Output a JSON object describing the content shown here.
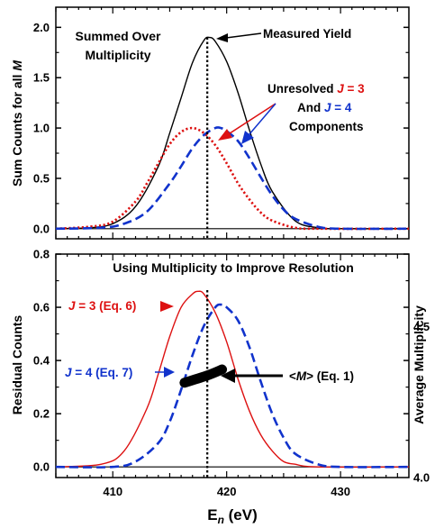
{
  "chart_data": [
    {
      "type": "line",
      "panel": "top",
      "title": "Summed Over Multiplicity",
      "ylabel": "Sum Counts for all M",
      "xlim": [
        405,
        436
      ],
      "ylim": [
        -0.1,
        2.2
      ],
      "yticks": [
        "0.0",
        "0.5",
        "1.0",
        "1.5",
        "2.0"
      ],
      "series": [
        {
          "name": "Measured Yield",
          "color": "#000000",
          "style": "solid",
          "x": [
            405,
            408,
            410,
            412,
            414,
            415,
            416,
            417,
            418,
            418.5,
            419,
            420,
            421,
            422,
            423,
            424,
            426,
            428,
            430,
            436
          ],
          "y": [
            0,
            0.01,
            0.05,
            0.22,
            0.62,
            0.95,
            1.3,
            1.65,
            1.87,
            1.9,
            1.86,
            1.66,
            1.35,
            0.98,
            0.64,
            0.37,
            0.08,
            0.01,
            0,
            0
          ]
        },
        {
          "name": "J = 3",
          "color": "#dd1111",
          "style": "dotted",
          "x": [
            405,
            408,
            410,
            412,
            413,
            414,
            415,
            416,
            417,
            418,
            419,
            420,
            421,
            422,
            423,
            424,
            426,
            428,
            436
          ],
          "y": [
            0,
            0.02,
            0.07,
            0.27,
            0.45,
            0.65,
            0.84,
            0.96,
            1.0,
            0.95,
            0.83,
            0.65,
            0.45,
            0.29,
            0.16,
            0.08,
            0.01,
            0,
            0
          ]
        },
        {
          "name": "J = 4",
          "color": "#1133cc",
          "style": "dashed",
          "x": [
            405,
            409,
            411,
            413,
            415,
            416,
            417,
            418,
            419,
            419.5,
            420,
            421,
            422,
            423,
            424,
            425,
            426,
            428,
            430,
            436
          ],
          "y": [
            0,
            0.01,
            0.05,
            0.17,
            0.45,
            0.62,
            0.8,
            0.93,
            1.0,
            1.0,
            0.97,
            0.87,
            0.7,
            0.51,
            0.33,
            0.19,
            0.1,
            0.02,
            0,
            0
          ]
        }
      ],
      "vline_x": 418.3,
      "annotations": {
        "measured": "Measured Yield",
        "unresolved_1": "Unresolved",
        "j3": "J = 3",
        "and": "And",
        "j4": "J = 4",
        "components": "Components",
        "title_line1": "Summed Over",
        "title_line2": "Multiplicity"
      }
    },
    {
      "type": "line",
      "panel": "bottom",
      "title": "Using Multiplicity to Improve Resolution",
      "xlabel": "E_n (eV)",
      "ylabel": "Residual Counts",
      "y2label": "Average Multiplicity",
      "xlim": [
        405,
        436
      ],
      "xticks": [
        "410",
        "420",
        "430"
      ],
      "ylim": [
        -0.04,
        0.8
      ],
      "yticks": [
        "0.0",
        "0.2",
        "0.4",
        "0.6",
        "0.8"
      ],
      "y2lim": [
        4.0,
        4.74
      ],
      "y2ticks": [
        "4.0",
        "4.5"
      ],
      "series": [
        {
          "name": "J = 3 (Eq. 6)",
          "color": "#dd1111",
          "style": "solid",
          "x": [
            405,
            409,
            411,
            413,
            414,
            415,
            416,
            417,
            417.5,
            418,
            419,
            420,
            421,
            422,
            423,
            424,
            425,
            426,
            428,
            436
          ],
          "y": [
            0,
            0.01,
            0.06,
            0.22,
            0.35,
            0.49,
            0.6,
            0.65,
            0.66,
            0.65,
            0.58,
            0.47,
            0.33,
            0.21,
            0.12,
            0.06,
            0.02,
            0.01,
            0,
            0
          ]
        },
        {
          "name": "J = 4 (Eq. 7)",
          "color": "#1133cc",
          "style": "dashed",
          "x": [
            405,
            410,
            412,
            414,
            415,
            416,
            417,
            418,
            419,
            419.5,
            420,
            421,
            422,
            423,
            424,
            425,
            426,
            428,
            430,
            436
          ],
          "y": [
            0,
            0,
            0.02,
            0.09,
            0.17,
            0.29,
            0.42,
            0.53,
            0.6,
            0.61,
            0.6,
            0.55,
            0.45,
            0.32,
            0.2,
            0.11,
            0.05,
            0.01,
            0,
            0
          ]
        },
        {
          "name": "<M> (Eq. 1)",
          "color": "#000000",
          "style": "thick",
          "axis": "y2",
          "x": [
            416.3,
            418.3,
            419.6
          ],
          "y": [
            4.314,
            4.338,
            4.358
          ]
        }
      ],
      "vline_x": 418.3,
      "annotations": {
        "j3": "J = 3 (Eq. 6)",
        "j4": "J = 4 (Eq. 7)",
        "m": "<M> (Eq. 1)"
      }
    }
  ],
  "text": {
    "top_title_1": "Summed Over",
    "top_title_2": "Multiplicity",
    "top_ylabel_a": "Sum Counts for all ",
    "top_ylabel_b": "M",
    "measured": "Measured Yield",
    "unresolved": "Unresolved ",
    "j_sym": "J",
    "j3_val": " = 3",
    "and": "And ",
    "j4_val": " = 4",
    "components": "Components",
    "bottom_title": "Using Multiplicity to Improve Resolution",
    "bottom_ylabel": "Residual Counts",
    "bottom_y2label": "Average Multiplicity",
    "j3_label": " = 3 (Eq. 6)",
    "j4_label": " = 4 (Eq. 7)",
    "m_open": "<",
    "m_sym": "M",
    "m_close": "> (Eq. 1)",
    "xlabel_e": "E",
    "xlabel_n": "n",
    "xlabel_unit": " (eV)"
  },
  "colors": {
    "red": "#dd1111",
    "blue": "#1133cc",
    "black": "#000000"
  }
}
